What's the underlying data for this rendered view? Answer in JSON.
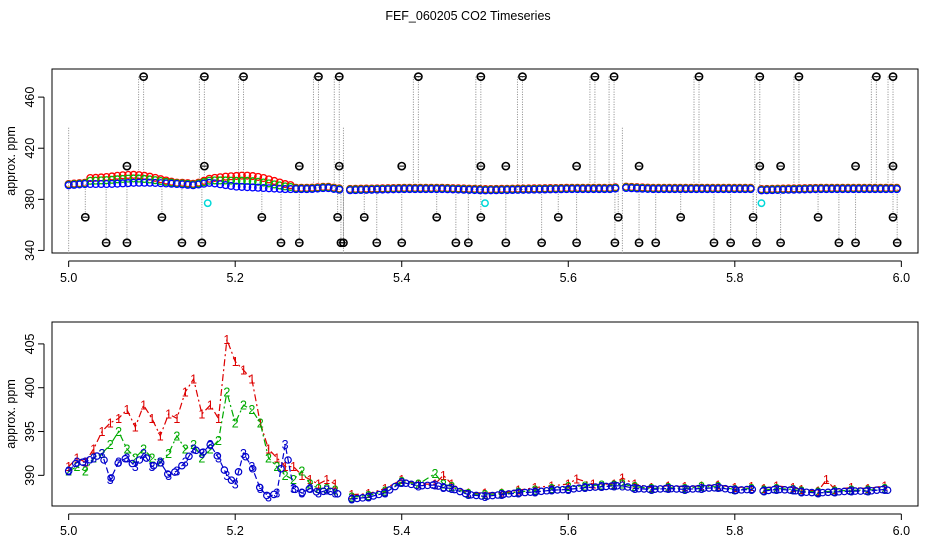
{
  "figure": {
    "title": "FEF_060205  CO2 Timeseries"
  },
  "chart_data": [
    {
      "type": "scatter",
      "panel": "top",
      "ylabel": "approx. ppm",
      "xlim": [
        4.98,
        6.02
      ],
      "ylim": [
        338,
        482
      ],
      "xticks": [
        5.0,
        5.2,
        5.4,
        5.6,
        5.8,
        6.0
      ],
      "yticks": [
        340,
        380,
        420,
        460
      ],
      "colors": {
        "s1": "#ff0000",
        "s2": "#00bb00",
        "s3": "#0000ff",
        "ref": "#00d8d8",
        "spike": "#000000",
        "drop": "#888888"
      },
      "spikes_high": [
        5.09,
        5.163,
        5.21,
        5.3,
        5.325,
        5.42,
        5.495,
        5.545,
        5.632,
        5.655,
        5.757,
        5.83,
        5.877,
        5.97,
        5.99
      ],
      "spikes_low": [
        5.02,
        5.045,
        5.07,
        5.112,
        5.136,
        5.16,
        5.232,
        5.255,
        5.277,
        5.323,
        5.327,
        5.33,
        5.355,
        5.37,
        5.4,
        5.442,
        5.465,
        5.48,
        5.495,
        5.525,
        5.568,
        5.588,
        5.61,
        5.656,
        5.66,
        5.685,
        5.705,
        5.735,
        5.775,
        5.795,
        5.822,
        5.826,
        5.855,
        5.9,
        5.925,
        5.945,
        5.99,
        5.995
      ],
      "ref_points": [
        [
          5.167,
          377
        ],
        [
          5.5,
          377
        ],
        [
          5.832,
          377
        ]
      ],
      "baseline": [
        [
          5.0,
          391
        ],
        [
          5.02,
          392
        ],
        [
          5.05,
          392
        ],
        [
          5.08,
          393
        ],
        [
          5.1,
          393
        ],
        [
          5.13,
          392
        ],
        [
          5.15,
          391
        ],
        [
          5.17,
          393
        ],
        [
          5.2,
          390
        ],
        [
          5.23,
          389
        ],
        [
          5.26,
          388
        ],
        [
          5.29,
          388
        ],
        [
          5.31,
          389
        ],
        [
          5.33,
          387
        ],
        [
          5.4,
          388
        ],
        [
          5.45,
          388
        ],
        [
          5.5,
          387
        ],
        [
          5.6,
          388
        ],
        [
          5.65,
          388
        ],
        [
          5.665,
          389
        ],
        [
          5.7,
          388
        ],
        [
          5.8,
          388
        ],
        [
          5.82,
          388
        ],
        [
          5.83,
          387
        ],
        [
          5.9,
          388
        ],
        [
          6.0,
          388
        ]
      ]
    },
    {
      "type": "line",
      "panel": "bottom",
      "ylabel": "approx. ppm",
      "xlim": [
        4.98,
        6.02
      ],
      "ylim": [
        386.5,
        407.5
      ],
      "xticks": [
        5.0,
        5.2,
        5.4,
        5.6,
        5.8,
        6.0
      ],
      "yticks": [
        390,
        395,
        400,
        405
      ],
      "series": [
        {
          "marker": "1",
          "color": "#dd0000",
          "points": [
            [
              5.0,
              391
            ],
            [
              5.01,
              392
            ],
            [
              5.02,
              391.5
            ],
            [
              5.03,
              393
            ],
            [
              5.04,
              395
            ],
            [
              5.05,
              396
            ],
            [
              5.06,
              396.5
            ],
            [
              5.07,
              397.5
            ],
            [
              5.08,
              395.5
            ],
            [
              5.09,
              398
            ],
            [
              5.1,
              396.5
            ],
            [
              5.11,
              394.5
            ],
            [
              5.12,
              397
            ],
            [
              5.13,
              396.5
            ],
            [
              5.14,
              399.5
            ],
            [
              5.15,
              401
            ],
            [
              5.16,
              397
            ],
            [
              5.17,
              398
            ],
            [
              5.18,
              396.5
            ],
            [
              5.19,
              405.5
            ],
            [
              5.2,
              403
            ],
            [
              5.21,
              402
            ],
            [
              5.22,
              401
            ],
            [
              5.23,
              396
            ],
            [
              5.24,
              393
            ],
            [
              5.25,
              392
            ],
            [
              5.26,
              391
            ],
            [
              5.27,
              391
            ],
            [
              5.28,
              390
            ],
            [
              5.29,
              389.5
            ],
            [
              5.3,
              389
            ],
            [
              5.31,
              389.5
            ],
            [
              5.32,
              389
            ],
            [
              5.34,
              387.8
            ],
            [
              5.36,
              387.9
            ],
            [
              5.38,
              388.5
            ],
            [
              5.4,
              389.5
            ],
            [
              5.42,
              389
            ],
            [
              5.44,
              389
            ],
            [
              5.45,
              390
            ],
            [
              5.46,
              389
            ],
            [
              5.48,
              388
            ],
            [
              5.5,
              388
            ],
            [
              5.52,
              388
            ],
            [
              5.54,
              388.3
            ],
            [
              5.56,
              388.6
            ],
            [
              5.58,
              388.8
            ],
            [
              5.6,
              389
            ],
            [
              5.61,
              389.6
            ],
            [
              5.63,
              389
            ],
            [
              5.655,
              389
            ],
            [
              5.665,
              389.7
            ],
            [
              5.68,
              389
            ],
            [
              5.7,
              388.6
            ],
            [
              5.72,
              388.8
            ],
            [
              5.74,
              388.7
            ],
            [
              5.76,
              388.8
            ],
            [
              5.78,
              388.9
            ],
            [
              5.8,
              388.6
            ],
            [
              5.82,
              388.7
            ],
            [
              5.835,
              388.5
            ],
            [
              5.85,
              388.8
            ],
            [
              5.87,
              388.6
            ],
            [
              5.88,
              388.4
            ],
            [
              5.9,
              388.2
            ],
            [
              5.91,
              389.5
            ],
            [
              5.92,
              388.4
            ],
            [
              5.94,
              388.6
            ],
            [
              5.96,
              388.5
            ],
            [
              5.98,
              388.8
            ]
          ]
        },
        {
          "marker": "2",
          "color": "#00aa00",
          "points": [
            [
              5.0,
              390.5
            ],
            [
              5.01,
              391
            ],
            [
              5.02,
              390.5
            ],
            [
              5.03,
              392
            ],
            [
              5.04,
              392.5
            ],
            [
              5.05,
              393.5
            ],
            [
              5.06,
              395
            ],
            [
              5.07,
              393
            ],
            [
              5.08,
              392
            ],
            [
              5.09,
              393
            ],
            [
              5.1,
              392
            ],
            [
              5.11,
              391.5
            ],
            [
              5.12,
              392.5
            ],
            [
              5.13,
              394.5
            ],
            [
              5.14,
              393
            ],
            [
              5.15,
              393.5
            ],
            [
              5.16,
              392
            ],
            [
              5.17,
              393
            ],
            [
              5.18,
              394
            ],
            [
              5.19,
              399.5
            ],
            [
              5.2,
              396
            ],
            [
              5.21,
              398
            ],
            [
              5.22,
              397.5
            ],
            [
              5.23,
              396
            ],
            [
              5.24,
              392
            ],
            [
              5.25,
              391
            ],
            [
              5.26,
              390
            ],
            [
              5.27,
              389.5
            ],
            [
              5.28,
              390.5
            ],
            [
              5.29,
              389
            ],
            [
              5.3,
              388.5
            ],
            [
              5.31,
              388.5
            ],
            [
              5.32,
              388.3
            ],
            [
              5.34,
              387.5
            ],
            [
              5.36,
              387.7
            ],
            [
              5.38,
              388.2
            ],
            [
              5.4,
              389.3
            ],
            [
              5.42,
              389
            ],
            [
              5.44,
              390.2
            ],
            [
              5.45,
              389
            ],
            [
              5.46,
              388.7
            ],
            [
              5.48,
              387.9
            ],
            [
              5.5,
              387.8
            ],
            [
              5.52,
              387.9
            ],
            [
              5.54,
              388.1
            ],
            [
              5.56,
              388.3
            ],
            [
              5.58,
              388.5
            ],
            [
              5.6,
              388.7
            ],
            [
              5.62,
              388.8
            ],
            [
              5.64,
              388.9
            ],
            [
              5.655,
              388.9
            ],
            [
              5.665,
              389
            ],
            [
              5.68,
              388.7
            ],
            [
              5.7,
              388.5
            ],
            [
              5.72,
              388.6
            ],
            [
              5.74,
              388.5
            ],
            [
              5.76,
              388.7
            ],
            [
              5.78,
              388.7
            ],
            [
              5.8,
              388.4
            ],
            [
              5.82,
              388.5
            ],
            [
              5.835,
              388.3
            ],
            [
              5.85,
              388.5
            ],
            [
              5.87,
              388.4
            ],
            [
              5.88,
              388.2
            ],
            [
              5.9,
              388.1
            ],
            [
              5.92,
              388.2
            ],
            [
              5.94,
              388.3
            ],
            [
              5.96,
              388.3
            ],
            [
              5.98,
              388.5
            ]
          ]
        },
        {
          "marker": "3",
          "color": "#0000cc",
          "points": [
            [
              5.0,
              390.5
            ],
            [
              5.01,
              391.5
            ],
            [
              5.02,
              391.5
            ],
            [
              5.03,
              392
            ],
            [
              5.04,
              392.5
            ],
            [
              5.05,
              389.5
            ],
            [
              5.06,
              391.5
            ],
            [
              5.07,
              392
            ],
            [
              5.08,
              391
            ],
            [
              5.09,
              392.5
            ],
            [
              5.1,
              391
            ],
            [
              5.11,
              391.5
            ],
            [
              5.12,
              390
            ],
            [
              5.13,
              390.5
            ],
            [
              5.14,
              391.5
            ],
            [
              5.15,
              393
            ],
            [
              5.16,
              392.5
            ],
            [
              5.17,
              393.5
            ],
            [
              5.18,
              392
            ],
            [
              5.19,
              390
            ],
            [
              5.2,
              389
            ],
            [
              5.21,
              392.5
            ],
            [
              5.22,
              391
            ],
            [
              5.23,
              388.5
            ],
            [
              5.24,
              387.5
            ],
            [
              5.25,
              388
            ],
            [
              5.26,
              393.5
            ],
            [
              5.27,
              388.5
            ],
            [
              5.28,
              388
            ],
            [
              5.29,
              388.5
            ],
            [
              5.3,
              388
            ],
            [
              5.31,
              388.3
            ],
            [
              5.32,
              388
            ],
            [
              5.34,
              387.3
            ],
            [
              5.36,
              387.5
            ],
            [
              5.38,
              388
            ],
            [
              5.4,
              389.2
            ],
            [
              5.42,
              388.8
            ],
            [
              5.44,
              388.9
            ],
            [
              5.45,
              388.6
            ],
            [
              5.46,
              388.5
            ],
            [
              5.48,
              387.8
            ],
            [
              5.5,
              387.6
            ],
            [
              5.52,
              387.8
            ],
            [
              5.54,
              388
            ],
            [
              5.56,
              388.1
            ],
            [
              5.58,
              388.3
            ],
            [
              5.6,
              388.4
            ],
            [
              5.62,
              388.6
            ],
            [
              5.64,
              388.7
            ],
            [
              5.655,
              388.8
            ],
            [
              5.665,
              388.8
            ],
            [
              5.68,
              388.5
            ],
            [
              5.7,
              388.4
            ],
            [
              5.72,
              388.5
            ],
            [
              5.74,
              388.4
            ],
            [
              5.76,
              388.5
            ],
            [
              5.78,
              388.6
            ],
            [
              5.8,
              388.3
            ],
            [
              5.82,
              388.4
            ],
            [
              5.835,
              388.2
            ],
            [
              5.85,
              388.4
            ],
            [
              5.87,
              388.3
            ],
            [
              5.88,
              388.1
            ],
            [
              5.9,
              388
            ],
            [
              5.92,
              388.1
            ],
            [
              5.94,
              388.2
            ],
            [
              5.96,
              388.2
            ],
            [
              5.98,
              388.4
            ]
          ]
        }
      ],
      "gaps": [
        5.33,
        5.665,
        5.825
      ]
    }
  ]
}
